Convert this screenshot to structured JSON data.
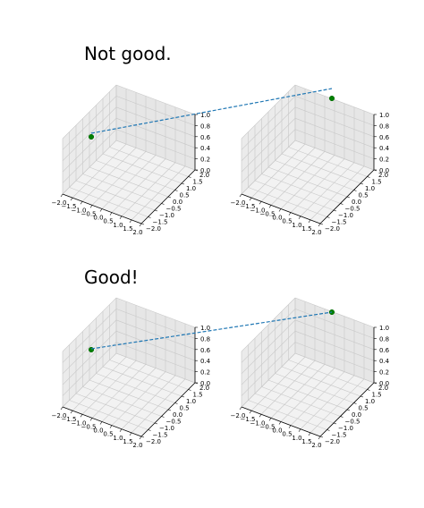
{
  "figure": {
    "titles": [
      "Not good.",
      "Good!"
    ]
  },
  "chart_data": [
    {
      "type": "scatter",
      "panel": "top-left",
      "projection": "3d",
      "grid": true,
      "xlim": [
        -2.0,
        2.0
      ],
      "ylim": [
        -2.0,
        2.0
      ],
      "zlim": [
        0.0,
        1.0
      ],
      "xticks": [
        "−2.0",
        "−1.5",
        "−1.0",
        "−0.5",
        "0.0",
        "0.5",
        "1.0",
        "1.5",
        "2.0"
      ],
      "yticks": [
        "−2.0",
        "−1.5",
        "−1.0",
        "−0.5",
        "0.0",
        "0.5",
        "1.0",
        "1.5",
        "2.0"
      ],
      "zticks": [
        "0.0",
        "0.2",
        "0.4",
        "0.6",
        "0.8",
        "1.0"
      ],
      "points": [
        {
          "x": 0.0,
          "y": 0.0,
          "z": 1.0,
          "color": "#008000"
        }
      ]
    },
    {
      "type": "scatter",
      "panel": "top-right",
      "projection": "3d",
      "grid": true,
      "xlim": [
        -2.0,
        2.0
      ],
      "ylim": [
        -2.0,
        2.0
      ],
      "zlim": [
        0.0,
        1.0
      ],
      "xticks": [
        "−2.0",
        "−1.5",
        "−1.0",
        "−0.5",
        "0.0",
        "0.5",
        "1.0",
        "1.5",
        "2.0"
      ],
      "yticks": [
        "−2.0",
        "−1.5",
        "−1.0",
        "−0.5",
        "0.0",
        "0.5",
        "1.0",
        "1.5",
        "2.0"
      ],
      "zticks": [
        "0.0",
        "0.2",
        "0.4",
        "0.6",
        "0.8",
        "1.0"
      ],
      "points": [
        {
          "x": 2.0,
          "y": 2.0,
          "z": 1.2,
          "color": "#008000"
        }
      ]
    },
    {
      "type": "scatter",
      "panel": "bottom-left",
      "projection": "3d",
      "grid": true,
      "xlim": [
        -2.0,
        2.0
      ],
      "ylim": [
        -2.0,
        2.0
      ],
      "zlim": [
        0.0,
        1.0
      ],
      "xticks": [
        "−2.0",
        "−1.5",
        "−1.0",
        "−0.5",
        "0.0",
        "0.5",
        "1.0",
        "1.5",
        "2.0"
      ],
      "yticks": [
        "−2.0",
        "−1.5",
        "−1.0",
        "−0.5",
        "0.0",
        "0.5",
        "1.0",
        "1.5",
        "2.0"
      ],
      "zticks": [
        "0.0",
        "0.2",
        "0.4",
        "0.6",
        "0.8",
        "1.0"
      ],
      "points": [
        {
          "x": 0.0,
          "y": 0.0,
          "z": 1.0,
          "color": "#008000"
        }
      ]
    },
    {
      "type": "scatter",
      "panel": "bottom-right",
      "projection": "3d",
      "grid": true,
      "xlim": [
        -2.0,
        2.0
      ],
      "ylim": [
        -2.0,
        2.0
      ],
      "zlim": [
        0.0,
        1.0
      ],
      "xticks": [
        "−2.0",
        "−1.5",
        "−1.0",
        "−0.5",
        "0.0",
        "0.5",
        "1.0",
        "1.5",
        "2.0"
      ],
      "yticks": [
        "−2.0",
        "−1.5",
        "−1.0",
        "−0.5",
        "0.0",
        "0.5",
        "1.0",
        "1.5",
        "2.0"
      ],
      "zticks": [
        "0.0",
        "0.2",
        "0.4",
        "0.6",
        "0.8",
        "1.0"
      ],
      "points": [
        {
          "x": 2.0,
          "y": 2.0,
          "z": 1.0,
          "color": "#008000"
        }
      ]
    }
  ],
  "connectors": [
    {
      "from": "top-left",
      "to": "top-right",
      "style": "dashed",
      "color": "#1f77b4"
    },
    {
      "from": "bottom-left",
      "to": "bottom-right",
      "style": "dashed",
      "color": "#1f77b4"
    }
  ]
}
